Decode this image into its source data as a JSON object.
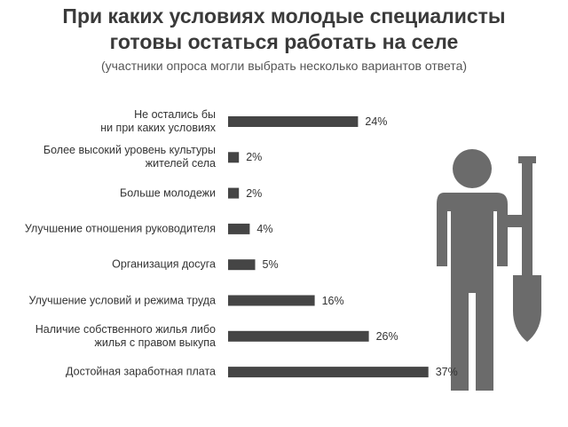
{
  "chart_data": {
    "type": "bar",
    "orientation": "horizontal",
    "title": "При каких условиях молодые специалисты\nготовы остаться работать на селе",
    "subtitle": "(участники опроса могли выбрать несколько вариантов ответа)",
    "categories": [
      "Не остались бы\nни при каких условиях",
      "Более высокий уровень культуры\nжителей села",
      "Больше молодежи",
      "Улучшение отношения руководителя",
      "Организация досуга",
      "Улучшение условий и режима труда",
      "Наличие собственного жилья либо\nжилья с правом выкупа",
      "Достойная заработная плата"
    ],
    "values": [
      24,
      2,
      2,
      4,
      5,
      16,
      26,
      37
    ],
    "value_labels": [
      "24%",
      "2%",
      "2%",
      "4%",
      "5%",
      "16%",
      "26%",
      "37%"
    ],
    "color": "#454545"
  }
}
